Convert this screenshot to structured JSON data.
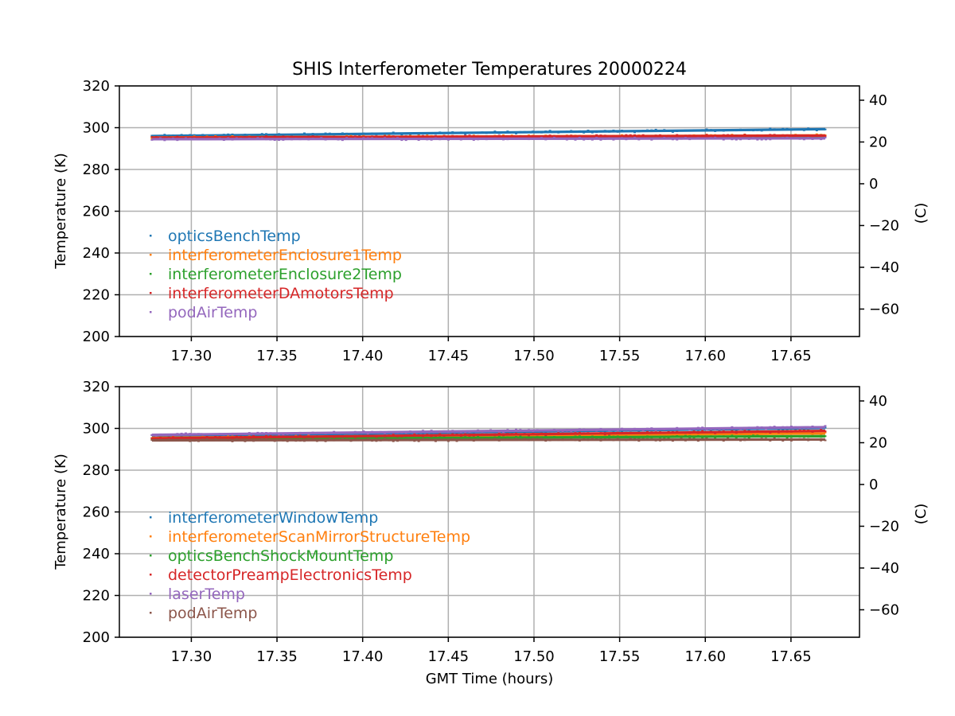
{
  "chart_data": [
    {
      "type": "scatter",
      "title": "SHIS Interferometer Temperatures 20000224",
      "xlabel": "",
      "ylabel": "Temperature (K)",
      "ylabel_right": "(C)",
      "xlim": [
        17.258,
        17.69
      ],
      "ylim": [
        200,
        320
      ],
      "ylim_right": [
        -73.15,
        46.85
      ],
      "xticks": [
        "17.30",
        "17.35",
        "17.40",
        "17.45",
        "17.50",
        "17.55",
        "17.60",
        "17.65"
      ],
      "yticks": [
        "200",
        "220",
        "240",
        "260",
        "280",
        "300",
        "320"
      ],
      "yticks_right": [
        "−60",
        "−40",
        "−20",
        "0",
        "20",
        "40"
      ],
      "grid": true,
      "legend_position": "lower-left",
      "x_range": [
        17.277,
        17.67
      ],
      "series": [
        {
          "name": "opticsBenchTemp",
          "color": "#1f77b4",
          "y_start": 296.0,
          "y_end": 299.3
        },
        {
          "name": "interferometerEnclosure1Temp",
          "color": "#ff7f0e",
          "y_start": 295.3,
          "y_end": 296.3
        },
        {
          "name": "interferometerEnclosure2Temp",
          "color": "#2ca02c",
          "y_start": 295.0,
          "y_end": 295.9
        },
        {
          "name": "interferometerDAmotorsTemp",
          "color": "#d62728",
          "y_start": 295.2,
          "y_end": 296.2
        },
        {
          "name": "podAirTemp",
          "color": "#9467bd",
          "y_start": 294.5,
          "y_end": 294.9
        }
      ]
    },
    {
      "type": "scatter",
      "title": "",
      "xlabel": "GMT Time (hours)",
      "ylabel": "Temperature (K)",
      "ylabel_right": "(C)",
      "xlim": [
        17.258,
        17.69
      ],
      "ylim": [
        200,
        320
      ],
      "ylim_right": [
        -73.15,
        46.85
      ],
      "xticks": [
        "17.30",
        "17.35",
        "17.40",
        "17.45",
        "17.50",
        "17.55",
        "17.60",
        "17.65"
      ],
      "yticks": [
        "200",
        "220",
        "240",
        "260",
        "280",
        "300",
        "320"
      ],
      "yticks_right": [
        "−60",
        "−40",
        "−20",
        "0",
        "20",
        "40"
      ],
      "grid": true,
      "legend_position": "lower-left",
      "x_range": [
        17.277,
        17.67
      ],
      "series": [
        {
          "name": "interferometerWindowTemp",
          "color": "#1f77b4",
          "y_start": 296.3,
          "y_end": 300.2
        },
        {
          "name": "interferometerScanMirrorStructureTemp",
          "color": "#ff7f0e",
          "y_start": 295.5,
          "y_end": 297.6
        },
        {
          "name": "opticsBenchShockMountTemp",
          "color": "#2ca02c",
          "y_start": 294.8,
          "y_end": 296.3
        },
        {
          "name": "detectorPreampElectronicsTemp",
          "color": "#d62728",
          "y_start": 295.2,
          "y_end": 298.8
        },
        {
          "name": "laserTemp",
          "color": "#9467bd",
          "y_start": 296.9,
          "y_end": 300.6
        },
        {
          "name": "podAirTemp",
          "color": "#8c564b",
          "y_start": 294.3,
          "y_end": 294.7
        }
      ]
    }
  ]
}
